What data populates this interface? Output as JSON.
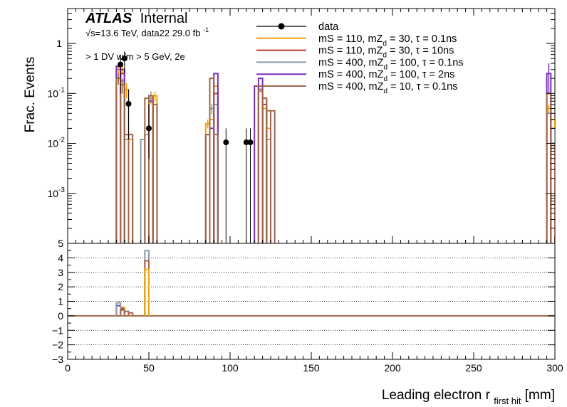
{
  "chart_data": {
    "type": "histogram",
    "atlas_label": "ATLAS",
    "atlas_sublabel": "Internal",
    "energy_text": "√s=13.6 TeV, data22 29.0 fb",
    "energy_sup": "-1",
    "selection_text": "> 1 DV w/m > 5 GeV, 2e",
    "xlabel_main": "Leading electron r",
    "xlabel_sub": "first hit",
    "xlabel_unit": " [mm]",
    "ylabel": "Frac. Events",
    "xlim": [
      0,
      300
    ],
    "ylim_top": [
      0.0001,
      5
    ],
    "ylim_bottom": [
      -3,
      5
    ],
    "y_scale_top": "log",
    "x_ticks": [
      "0",
      "50",
      "100",
      "150",
      "200",
      "250",
      "300"
    ],
    "y_ticks_top": [
      {
        "base": "10",
        "exp": "-3",
        "value": 0.001
      },
      {
        "base": "10",
        "exp": "-2",
        "value": 0.01
      },
      {
        "base": "10",
        "exp": "-1",
        "value": 0.1
      },
      {
        "base": "1",
        "exp": "",
        "value": 1
      }
    ],
    "y_ticks_bottom": [
      "5",
      "4",
      "3",
      "2",
      "1",
      "0",
      "−1",
      "−2",
      "−3"
    ],
    "legend": [
      {
        "label_pre": "data",
        "kind": "data",
        "color": "#000000"
      },
      {
        "label_pre": "mS = 110, mZ",
        "label_post": " = 30, τ = 0.1ns",
        "kind": "line",
        "color": "#f0a30a"
      },
      {
        "label_pre": "mS = 110, mZ",
        "label_post": " = 30, τ = 10ns",
        "kind": "line",
        "color": "#c0392b"
      },
      {
        "label_pre": "mS = 400, mZ",
        "label_post": " = 100, τ = 0.1ns",
        "kind": "line",
        "color": "#8e9aa6"
      },
      {
        "label_pre": "mS = 400, mZ",
        "label_post": " = 100, τ = 2ns",
        "kind": "line",
        "color": "#7b2fbe"
      },
      {
        "label_pre": "mS = 400, mZ",
        "label_post": " = 10, τ = 0.1ns",
        "kind": "line",
        "color": "#a0664a"
      }
    ],
    "legend_subscript": "d",
    "data_points": [
      {
        "x": 32.5,
        "y": 0.38,
        "lo": 0.1,
        "hi": 0.6
      },
      {
        "x": 35,
        "y": 0.5,
        "lo": 0.25,
        "hi": 0.7
      },
      {
        "x": 37.5,
        "y": 0.062,
        "lo": 0.012,
        "hi": 0.12
      },
      {
        "x": 50,
        "y": 0.02,
        "lo": 0.005,
        "hi": 0.06
      },
      {
        "x": 97.5,
        "y": 0.0105,
        "lo": 0.0001,
        "hi": 0.02
      },
      {
        "x": 110,
        "y": 0.0105,
        "lo": 0.0001,
        "hi": 0.02
      },
      {
        "x": 112.5,
        "y": 0.0105,
        "lo": 0.0001,
        "hi": 0.02
      }
    ],
    "series": [
      {
        "name_index": 1,
        "bins": [
          {
            "x0": 30,
            "x1": 32.5,
            "y": 0.3,
            "e": 0.06
          },
          {
            "x0": 32.5,
            "x1": 35,
            "y": 0.3,
            "e": 0.06
          },
          {
            "x0": 35,
            "x1": 37.5,
            "y": 0.12,
            "e": 0.04
          },
          {
            "x0": 37.5,
            "x1": 40,
            "y": 0.012
          },
          {
            "x0": 50,
            "x1": 52.5,
            "y": 0.08,
            "e": 0.02
          },
          {
            "x0": 52.5,
            "x1": 55,
            "y": 0.09,
            "e": 0.02
          },
          {
            "x0": 85,
            "x1": 87.5,
            "y": 0.025,
            "e": 0.005
          },
          {
            "x0": 87.5,
            "x1": 90,
            "y": 0.03
          },
          {
            "x0": 90,
            "x1": 92.5,
            "y": 0.14
          },
          {
            "x0": 117.5,
            "x1": 120,
            "y": 0.12
          },
          {
            "x0": 120,
            "x1": 122.5,
            "y": 0.05
          },
          {
            "x0": 122.5,
            "x1": 125,
            "y": 0.02
          },
          {
            "x0": 295,
            "x1": 297.5,
            "y": 0.05,
            "e": 0.01
          },
          {
            "x0": 297.5,
            "x1": 300,
            "y": 0.03
          }
        ]
      },
      {
        "name_index": 2,
        "bins": [
          {
            "x0": 30,
            "x1": 32.5,
            "y": 0.35
          },
          {
            "x0": 32.5,
            "x1": 35,
            "y": 0.25
          },
          {
            "x0": 50,
            "x1": 52.5,
            "y": 0.09
          },
          {
            "x0": 90,
            "x1": 92.5,
            "y": 0.1
          },
          {
            "x0": 120,
            "x1": 122.5,
            "y": 0.06
          }
        ]
      },
      {
        "name_index": 3,
        "bins": [
          {
            "x0": 30,
            "x1": 32.5,
            "y": 0.3
          },
          {
            "x0": 32.5,
            "x1": 35,
            "y": 0.18
          },
          {
            "x0": 35,
            "x1": 37.5,
            "y": 0.012
          },
          {
            "x0": 45,
            "x1": 47.5,
            "y": 0.012
          },
          {
            "x0": 47.5,
            "x1": 50,
            "y": 0.015
          },
          {
            "x0": 50,
            "x1": 52.5,
            "y": 0.09,
            "e": 0.02
          },
          {
            "x0": 85,
            "x1": 87.5,
            "y": 0.015
          },
          {
            "x0": 87.5,
            "x1": 90,
            "y": 0.05,
            "e": 0.012
          },
          {
            "x0": 90,
            "x1": 92.5,
            "y": 0.06
          },
          {
            "x0": 117.5,
            "x1": 120,
            "y": 0.11
          },
          {
            "x0": 120,
            "x1": 122.5,
            "y": 0.08
          },
          {
            "x0": 122.5,
            "x1": 125,
            "y": 0.012
          },
          {
            "x0": 295,
            "x1": 297.5,
            "y": 0.04
          },
          {
            "x0": 297.5,
            "x1": 300,
            "y": 0.02
          }
        ]
      },
      {
        "name_index": 4,
        "bins": [
          {
            "x0": 30,
            "x1": 32.5,
            "y": 0.35
          },
          {
            "x0": 32.5,
            "x1": 35,
            "y": 0.3
          },
          {
            "x0": 50,
            "x1": 52.5,
            "y": 0.07
          },
          {
            "x0": 87.5,
            "x1": 90,
            "y": 0.02
          },
          {
            "x0": 90,
            "x1": 92.5,
            "y": 0.25
          },
          {
            "x0": 115,
            "x1": 117.5,
            "y": 0.14
          },
          {
            "x0": 117.5,
            "x1": 120,
            "y": 0.2
          },
          {
            "x0": 295,
            "x1": 297.5,
            "y": 0.25,
            "e": 0.15
          }
        ]
      },
      {
        "name_index": 5,
        "bins": [
          {
            "x0": 30,
            "x1": 32.5,
            "y": 0.2,
            "e": 0.05
          },
          {
            "x0": 32.5,
            "x1": 35,
            "y": 0.15,
            "e": 0.05
          },
          {
            "x0": 35,
            "x1": 37.5,
            "y": 0.015
          },
          {
            "x0": 37.5,
            "x1": 40,
            "y": 0.015
          },
          {
            "x0": 47.5,
            "x1": 50,
            "y": 0.08
          },
          {
            "x0": 50,
            "x1": 52.5,
            "y": 0.09
          },
          {
            "x0": 52.5,
            "x1": 55,
            "y": 0.06
          },
          {
            "x0": 85,
            "x1": 87.5,
            "y": 0.015
          },
          {
            "x0": 87.5,
            "x1": 90,
            "y": 0.2
          },
          {
            "x0": 90,
            "x1": 92.5,
            "y": 0.015
          },
          {
            "x0": 117.5,
            "x1": 120,
            "y": 0.12
          },
          {
            "x0": 120,
            "x1": 122.5,
            "y": 0.08
          },
          {
            "x0": 122.5,
            "x1": 125,
            "y": 0.045
          },
          {
            "x0": 125,
            "x1": 127.5,
            "y": 0.045
          },
          {
            "x0": 295,
            "x1": 297.5,
            "y": 0.1
          },
          {
            "x0": 297.5,
            "x1": 300,
            "y": 0.01
          }
        ]
      }
    ],
    "ratio_bins": [
      {
        "series": 4,
        "x0": 30,
        "x1": 32.5,
        "y": 0.7
      },
      {
        "series": 4,
        "x0": 32.5,
        "x1": 35,
        "y": 0.5
      },
      {
        "series": 1,
        "x0": 32.5,
        "x1": 35,
        "y": 0.6
      },
      {
        "series": 3,
        "x0": 30,
        "x1": 32.5,
        "y": 0.9
      },
      {
        "series": 5,
        "x0": 32.5,
        "x1": 35,
        "y": 0.4
      },
      {
        "series": 5,
        "x0": 35,
        "x1": 37.5,
        "y": 0.3
      },
      {
        "series": 5,
        "x0": 37.5,
        "x1": 40,
        "y": 0.2
      },
      {
        "series": 3,
        "x0": 47.5,
        "x1": 50,
        "y": 4.5
      },
      {
        "series": 5,
        "x0": 47.5,
        "x1": 50,
        "y": 3.8
      },
      {
        "series": 1,
        "x0": 47.5,
        "x1": 50,
        "y": 3.2
      }
    ]
  }
}
